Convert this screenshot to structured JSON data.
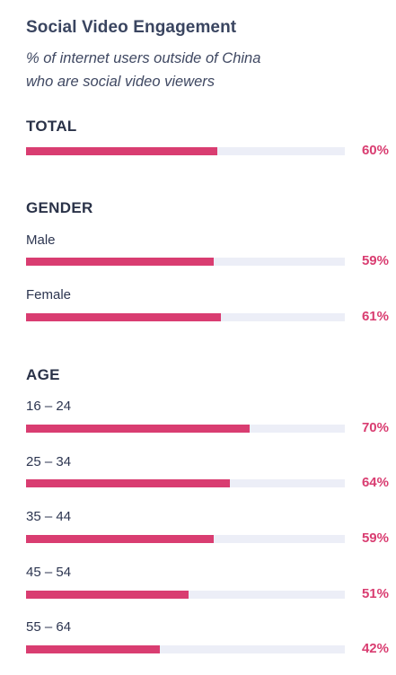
{
  "chart_data": {
    "type": "bar",
    "orientation": "horizontal",
    "title": "Social Video Engagement",
    "subtitle_lines": [
      "% of internet users outside of China",
      "who are social video viewers"
    ],
    "value_max": 100,
    "colors": {
      "bar": "#d93d71",
      "track": "#eceef7",
      "value_label": "#d93d71"
    },
    "sections": [
      {
        "heading": "TOTAL",
        "rows": [
          {
            "label": "",
            "value": 60,
            "value_label": "60%"
          }
        ]
      },
      {
        "heading": "GENDER",
        "rows": [
          {
            "label": "Male",
            "value": 59,
            "value_label": "59%"
          },
          {
            "label": "Female",
            "value": 61,
            "value_label": "61%"
          }
        ]
      },
      {
        "heading": "AGE",
        "rows": [
          {
            "label": "16 – 24",
            "value": 70,
            "value_label": "70%"
          },
          {
            "label": "25 – 34",
            "value": 64,
            "value_label": "64%"
          },
          {
            "label": "35 – 44",
            "value": 59,
            "value_label": "59%"
          },
          {
            "label": "45 – 54",
            "value": 51,
            "value_label": "51%"
          },
          {
            "label": "55 – 64",
            "value": 42,
            "value_label": "42%"
          }
        ]
      }
    ]
  }
}
